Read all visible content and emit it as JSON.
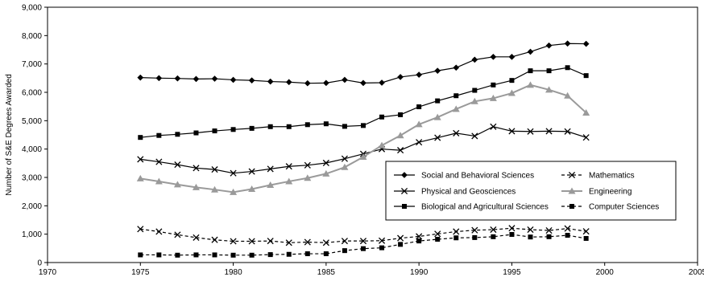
{
  "chart_data": {
    "type": "line",
    "title": "",
    "xlabel": "",
    "ylabel": "Number of S&E Degrees Awarded",
    "xlim": [
      1970,
      2005
    ],
    "ylim": [
      0,
      9000
    ],
    "x_ticks": [
      1970,
      1975,
      1980,
      1985,
      1990,
      1995,
      2000,
      2005
    ],
    "y_ticks": [
      0,
      1000,
      2000,
      3000,
      4000,
      5000,
      6000,
      7000,
      8000,
      9000
    ],
    "y_tick_labels": [
      "0",
      "1,000",
      "2,000",
      "3,000",
      "4,000",
      "5,000",
      "6,000",
      "7,000",
      "8,000",
      "9,000"
    ],
    "grid": false,
    "legend_position": "center-right",
    "x": [
      1975,
      1976,
      1977,
      1978,
      1979,
      1980,
      1981,
      1982,
      1983,
      1984,
      1985,
      1986,
      1987,
      1988,
      1989,
      1990,
      1991,
      1992,
      1993,
      1994,
      1995,
      1996,
      1997,
      1998,
      1999
    ],
    "series": [
      {
        "name": "Social and Behavioral Sciences",
        "color": "#000000",
        "marker": "diamond",
        "line": "solid",
        "values": [
          6520,
          6500,
          6490,
          6470,
          6480,
          6440,
          6420,
          6380,
          6360,
          6320,
          6330,
          6440,
          6330,
          6340,
          6540,
          6620,
          6760,
          6870,
          7150,
          7250,
          7250,
          7430,
          7650,
          7720,
          7710
        ]
      },
      {
        "name": "Physical and Geosciences",
        "color": "#000000",
        "marker": "x",
        "line": "solid",
        "values": [
          3640,
          3550,
          3450,
          3330,
          3280,
          3150,
          3210,
          3300,
          3390,
          3430,
          3510,
          3660,
          3830,
          4000,
          3960,
          4240,
          4400,
          4560,
          4460,
          4790,
          4630,
          4620,
          4630,
          4620,
          4410
        ]
      },
      {
        "name": "Biological and Agricultural Sciences",
        "color": "#000000",
        "marker": "square",
        "line": "solid",
        "values": [
          4410,
          4480,
          4520,
          4570,
          4640,
          4690,
          4730,
          4790,
          4790,
          4860,
          4890,
          4800,
          4830,
          5130,
          5210,
          5490,
          5700,
          5880,
          6070,
          6260,
          6420,
          6760,
          6760,
          6870,
          6590
        ]
      },
      {
        "name": "Mathematics",
        "color": "#000000",
        "marker": "x",
        "line": "dashed",
        "values": [
          1180,
          1090,
          980,
          880,
          800,
          750,
          750,
          760,
          700,
          720,
          700,
          760,
          760,
          770,
          860,
          920,
          1010,
          1090,
          1140,
          1160,
          1210,
          1160,
          1130,
          1200,
          1100
        ]
      },
      {
        "name": "Engineering",
        "color": "#9a9a9a",
        "marker": "triangle",
        "line": "solid",
        "values": [
          2960,
          2860,
          2750,
          2650,
          2570,
          2480,
          2590,
          2730,
          2860,
          2980,
          3130,
          3360,
          3720,
          4130,
          4480,
          4870,
          5120,
          5410,
          5680,
          5790,
          5970,
          6260,
          6090,
          5880,
          5280
        ]
      },
      {
        "name": "Computer Sciences",
        "color": "#000000",
        "marker": "square",
        "line": "dashed",
        "values": [
          270,
          270,
          260,
          270,
          270,
          260,
          260,
          280,
          290,
          310,
          310,
          420,
          490,
          520,
          640,
          760,
          820,
          870,
          880,
          910,
          990,
          900,
          910,
          960,
          850
        ]
      }
    ]
  }
}
